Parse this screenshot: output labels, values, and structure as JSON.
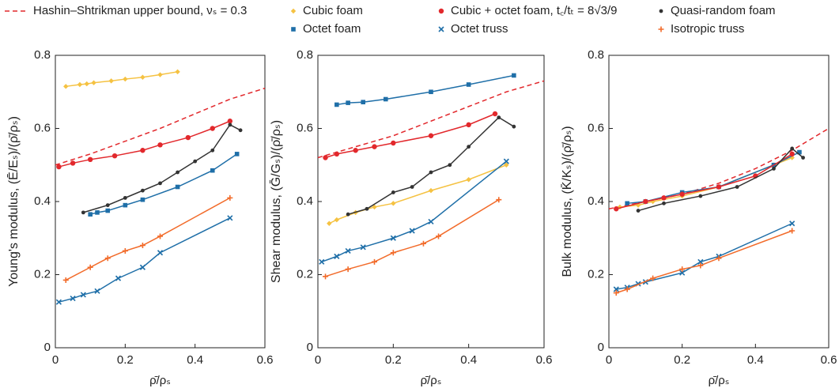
{
  "chart_data": [
    {
      "type": "line",
      "ylabel": "Young's modulus, (Ē/Eₛ)/(ρ̄/ρₛ)",
      "xlabel": "ρ̄/ρₛ",
      "xlim": [
        0,
        0.6
      ],
      "xticks": [
        0,
        0.2,
        0.4,
        0.6
      ],
      "ylim": [
        0,
        0.8
      ],
      "yticks": [
        0,
        0.2,
        0.4,
        0.6,
        0.8
      ],
      "series": [
        {
          "name": "Hashin–Shtrikman upper bound, νₛ = 0.3",
          "color": "#e2282c",
          "marker": "none",
          "dash": true,
          "x": [
            0,
            0.1,
            0.2,
            0.3,
            0.4,
            0.5,
            0.6
          ],
          "values": [
            0.5,
            0.53,
            0.565,
            0.6,
            0.64,
            0.68,
            0.71
          ]
        },
        {
          "name": "Cubic foam",
          "color": "#f5c242",
          "marker": "diamond",
          "x": [
            0.03,
            0.07,
            0.09,
            0.11,
            0.16,
            0.2,
            0.25,
            0.3,
            0.35
          ],
          "values": [
            0.715,
            0.72,
            0.722,
            0.725,
            0.73,
            0.735,
            0.74,
            0.747,
            0.755
          ]
        },
        {
          "name": "Octet foam",
          "color": "#1f6fa8",
          "marker": "square",
          "x": [
            0.1,
            0.12,
            0.15,
            0.2,
            0.25,
            0.35,
            0.45,
            0.52
          ],
          "values": [
            0.365,
            0.37,
            0.375,
            0.39,
            0.405,
            0.44,
            0.485,
            0.53
          ]
        },
        {
          "name": "Cubic + octet foam, t꜀/tₜ = 8√3/9",
          "color": "#e2282c",
          "marker": "circle",
          "x": [
            0.01,
            0.05,
            0.1,
            0.17,
            0.25,
            0.3,
            0.38,
            0.45,
            0.5
          ],
          "values": [
            0.495,
            0.505,
            0.515,
            0.525,
            0.54,
            0.555,
            0.575,
            0.6,
            0.62
          ]
        },
        {
          "name": "Octet truss",
          "color": "#1f6fa8",
          "marker": "x",
          "x": [
            0.01,
            0.05,
            0.08,
            0.12,
            0.18,
            0.25,
            0.3,
            0.5
          ],
          "values": [
            0.125,
            0.135,
            0.145,
            0.155,
            0.19,
            0.22,
            0.26,
            0.355
          ]
        },
        {
          "name": "Quasi-random foam",
          "color": "#333333",
          "marker": "dot",
          "x": [
            0.08,
            0.15,
            0.2,
            0.25,
            0.3,
            0.35,
            0.4,
            0.45,
            0.5,
            0.53
          ],
          "values": [
            0.37,
            0.39,
            0.41,
            0.43,
            0.45,
            0.48,
            0.51,
            0.54,
            0.61,
            0.595
          ]
        },
        {
          "name": "Isotropic truss",
          "color": "#f26b2a",
          "marker": "plus",
          "x": [
            0.03,
            0.1,
            0.15,
            0.2,
            0.25,
            0.3,
            0.5
          ],
          "values": [
            0.185,
            0.22,
            0.245,
            0.265,
            0.28,
            0.305,
            0.41
          ]
        }
      ]
    },
    {
      "type": "line",
      "ylabel": "Shear modulus, (Ḡ/Gₛ)/(ρ̄/ρₛ)",
      "xlabel": "ρ̄/ρₛ",
      "xlim": [
        0,
        0.6
      ],
      "xticks": [
        0,
        0.2,
        0.4,
        0.6
      ],
      "ylim": [
        0,
        0.8
      ],
      "yticks": [
        0,
        0.2,
        0.4,
        0.6,
        0.8
      ],
      "series": [
        {
          "name": "Hashin–Shtrikman upper bound, νₛ = 0.3",
          "color": "#e2282c",
          "marker": "none",
          "dash": true,
          "x": [
            0,
            0.1,
            0.2,
            0.3,
            0.4,
            0.5,
            0.6
          ],
          "values": [
            0.52,
            0.55,
            0.58,
            0.62,
            0.66,
            0.7,
            0.73
          ]
        },
        {
          "name": "Cubic foam",
          "color": "#f5c242",
          "marker": "diamond",
          "x": [
            0.03,
            0.05,
            0.1,
            0.15,
            0.2,
            0.3,
            0.4,
            0.5
          ],
          "values": [
            0.34,
            0.35,
            0.37,
            0.385,
            0.395,
            0.43,
            0.46,
            0.5
          ]
        },
        {
          "name": "Octet foam",
          "color": "#1f6fa8",
          "marker": "square",
          "x": [
            0.05,
            0.08,
            0.12,
            0.18,
            0.3,
            0.4,
            0.52
          ],
          "values": [
            0.665,
            0.67,
            0.672,
            0.68,
            0.7,
            0.72,
            0.745
          ]
        },
        {
          "name": "Cubic + octet foam, t꜀/tₜ = 8√3/9",
          "color": "#e2282c",
          "marker": "circle",
          "x": [
            0.02,
            0.05,
            0.1,
            0.15,
            0.2,
            0.3,
            0.4,
            0.47
          ],
          "values": [
            0.52,
            0.53,
            0.54,
            0.55,
            0.56,
            0.58,
            0.61,
            0.64
          ]
        },
        {
          "name": "Octet truss",
          "color": "#1f6fa8",
          "marker": "x",
          "x": [
            0.01,
            0.05,
            0.08,
            0.12,
            0.2,
            0.25,
            0.3,
            0.5
          ],
          "values": [
            0.235,
            0.25,
            0.265,
            0.275,
            0.3,
            0.32,
            0.345,
            0.51
          ]
        },
        {
          "name": "Quasi-random foam",
          "color": "#333333",
          "marker": "dot",
          "x": [
            0.08,
            0.13,
            0.2,
            0.25,
            0.3,
            0.35,
            0.4,
            0.48,
            0.52
          ],
          "values": [
            0.365,
            0.38,
            0.425,
            0.44,
            0.48,
            0.5,
            0.55,
            0.63,
            0.605
          ]
        },
        {
          "name": "Isotropic truss",
          "color": "#f26b2a",
          "marker": "plus",
          "x": [
            0.02,
            0.08,
            0.15,
            0.2,
            0.28,
            0.32,
            0.48
          ],
          "values": [
            0.195,
            0.215,
            0.235,
            0.26,
            0.285,
            0.305,
            0.405
          ]
        }
      ]
    },
    {
      "type": "line",
      "ylabel": "Bulk modulus, (K̄/Kₛ)/(ρ̄/ρₛ)",
      "xlabel": "ρ̄/ρₛ",
      "xlim": [
        0,
        0.6
      ],
      "xticks": [
        0,
        0.2,
        0.4,
        0.6
      ],
      "ylim": [
        0,
        0.8
      ],
      "yticks": [
        0,
        0.2,
        0.4,
        0.6,
        0.8
      ],
      "series": [
        {
          "name": "Hashin–Shtrikman upper bound, νₛ = 0.3",
          "color": "#e2282c",
          "marker": "none",
          "dash": true,
          "x": [
            0,
            0.1,
            0.2,
            0.3,
            0.4,
            0.5,
            0.6
          ],
          "values": [
            0.38,
            0.4,
            0.42,
            0.45,
            0.49,
            0.54,
            0.6
          ]
        },
        {
          "name": "Cubic foam",
          "color": "#f5c242",
          "marker": "diamond",
          "x": [
            0.03,
            0.08,
            0.12,
            0.2,
            0.3,
            0.45,
            0.5
          ],
          "values": [
            0.385,
            0.39,
            0.4,
            0.415,
            0.44,
            0.5,
            0.52
          ]
        },
        {
          "name": "Octet foam",
          "color": "#1f6fa8",
          "marker": "square",
          "x": [
            0.05,
            0.1,
            0.2,
            0.3,
            0.45,
            0.52
          ],
          "values": [
            0.395,
            0.4,
            0.425,
            0.44,
            0.5,
            0.535
          ]
        },
        {
          "name": "Cubic + octet foam, t꜀/tₜ = 8√3/9",
          "color": "#e2282c",
          "marker": "circle",
          "x": [
            0.02,
            0.1,
            0.15,
            0.2,
            0.3,
            0.4,
            0.5
          ],
          "values": [
            0.38,
            0.4,
            0.41,
            0.42,
            0.44,
            0.47,
            0.53
          ]
        },
        {
          "name": "Octet truss",
          "color": "#1f6fa8",
          "marker": "x",
          "x": [
            0.02,
            0.05,
            0.08,
            0.1,
            0.2,
            0.25,
            0.3,
            0.5
          ],
          "values": [
            0.16,
            0.165,
            0.175,
            0.18,
            0.205,
            0.235,
            0.25,
            0.34
          ]
        },
        {
          "name": "Quasi-random foam",
          "color": "#333333",
          "marker": "dot",
          "x": [
            0.08,
            0.15,
            0.25,
            0.35,
            0.45,
            0.5,
            0.53
          ],
          "values": [
            0.375,
            0.395,
            0.415,
            0.44,
            0.49,
            0.545,
            0.52
          ]
        },
        {
          "name": "Isotropic truss",
          "color": "#f26b2a",
          "marker": "plus",
          "x": [
            0.02,
            0.05,
            0.12,
            0.2,
            0.25,
            0.3,
            0.5
          ],
          "values": [
            0.15,
            0.16,
            0.19,
            0.215,
            0.225,
            0.245,
            0.32
          ]
        }
      ]
    }
  ]
}
